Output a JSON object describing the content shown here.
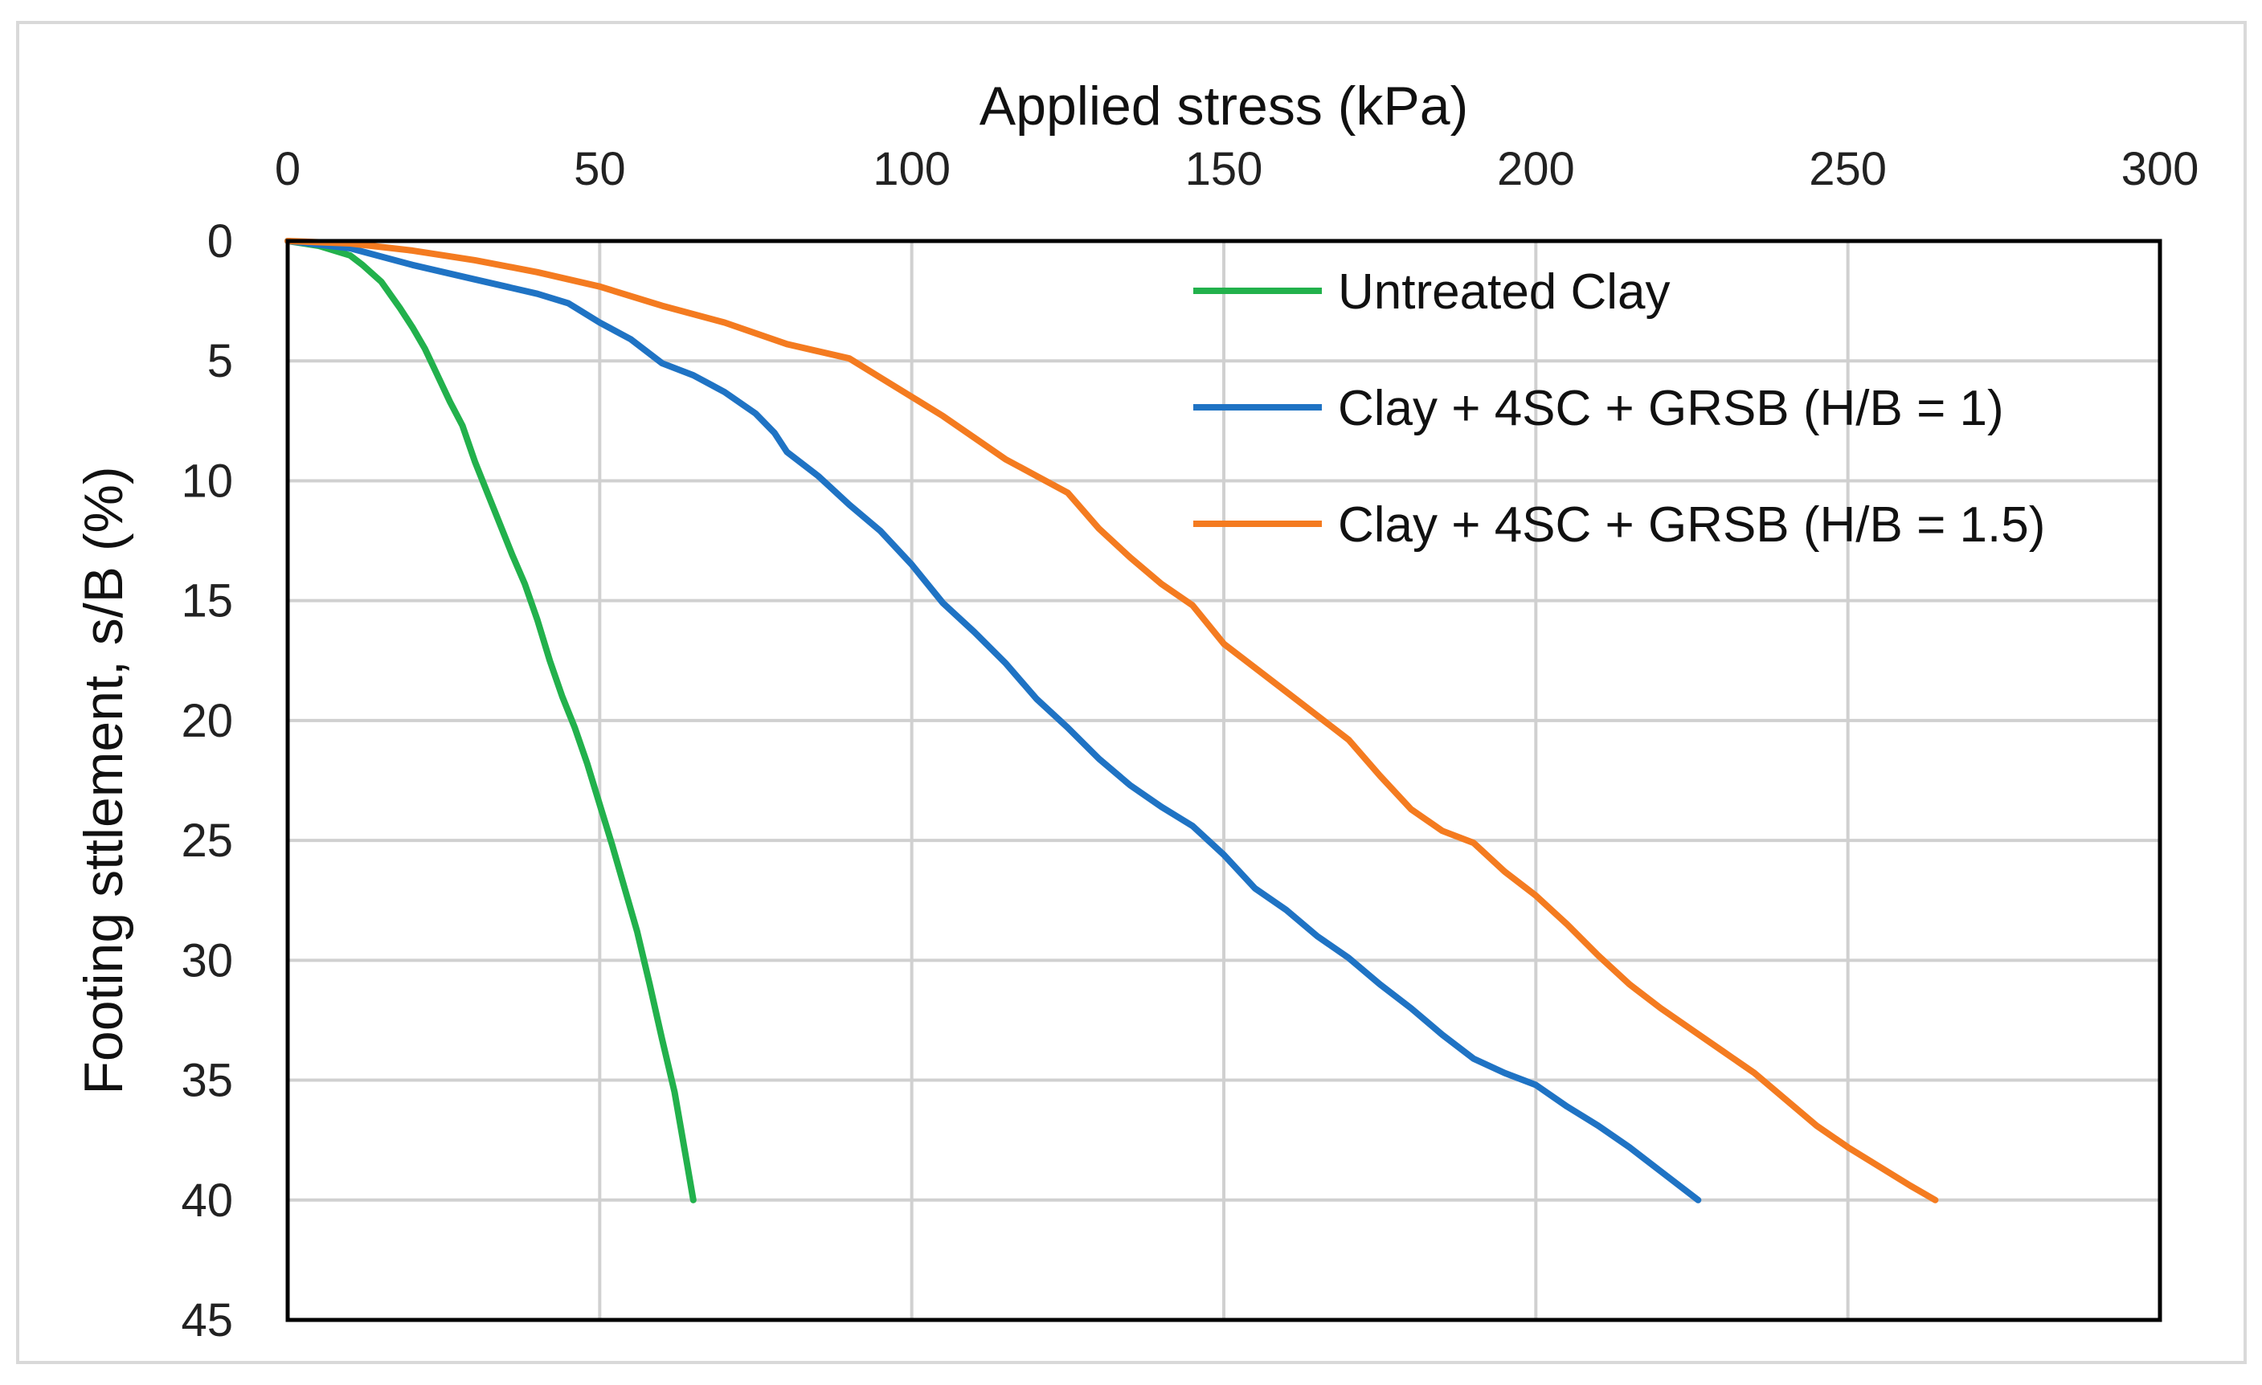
{
  "chart_data": {
    "type": "line",
    "title": "",
    "xlabel": "Applied stress (kPa)",
    "ylabel": "Footing sttlement, s/B (%)",
    "xlim": [
      0,
      300
    ],
    "ylim": [
      0,
      45
    ],
    "x_ticks": [
      "0",
      "50",
      "100",
      "150",
      "200",
      "250",
      "300"
    ],
    "y_ticks": [
      "0",
      "5",
      "10",
      "15",
      "20",
      "25",
      "30",
      "35",
      "40",
      "45"
    ],
    "x_axis_position": "top",
    "y_axis_inverted": true,
    "grid": true,
    "legend_position": "top-right",
    "series": [
      {
        "name": "Untreated Clay",
        "color": "#22b14c",
        "points": [
          [
            0,
            0
          ],
          [
            5,
            0.2
          ],
          [
            10,
            0.6
          ],
          [
            12,
            1.0
          ],
          [
            15,
            1.7
          ],
          [
            18,
            2.8
          ],
          [
            20,
            3.6
          ],
          [
            22,
            4.5
          ],
          [
            24,
            5.6
          ],
          [
            26,
            6.7
          ],
          [
            28,
            7.7
          ],
          [
            30,
            9.2
          ],
          [
            32,
            10.5
          ],
          [
            34,
            11.8
          ],
          [
            36,
            13.1
          ],
          [
            38,
            14.3
          ],
          [
            40,
            15.8
          ],
          [
            42,
            17.5
          ],
          [
            44,
            19.0
          ],
          [
            46,
            20.3
          ],
          [
            48,
            21.8
          ],
          [
            50,
            23.5
          ],
          [
            52,
            25.2
          ],
          [
            54,
            27.0
          ],
          [
            56,
            28.8
          ],
          [
            58,
            31.0
          ],
          [
            60,
            33.3
          ],
          [
            62,
            35.5
          ],
          [
            63,
            37.0
          ],
          [
            64,
            38.5
          ],
          [
            65,
            40.0
          ]
        ]
      },
      {
        "name": "Clay + 4SC + GRSB (H/B = 1)",
        "color": "#1f73c4",
        "points": [
          [
            0,
            0
          ],
          [
            10,
            0.3
          ],
          [
            20,
            1.0
          ],
          [
            30,
            1.6
          ],
          [
            40,
            2.2
          ],
          [
            45,
            2.6
          ],
          [
            50,
            3.4
          ],
          [
            55,
            4.1
          ],
          [
            60,
            5.1
          ],
          [
            65,
            5.6
          ],
          [
            70,
            6.3
          ],
          [
            75,
            7.2
          ],
          [
            78,
            8.0
          ],
          [
            80,
            8.8
          ],
          [
            85,
            9.8
          ],
          [
            90,
            11.0
          ],
          [
            95,
            12.1
          ],
          [
            100,
            13.5
          ],
          [
            105,
            15.1
          ],
          [
            110,
            16.3
          ],
          [
            115,
            17.6
          ],
          [
            120,
            19.1
          ],
          [
            125,
            20.3
          ],
          [
            130,
            21.6
          ],
          [
            135,
            22.7
          ],
          [
            140,
            23.6
          ],
          [
            145,
            24.4
          ],
          [
            150,
            25.6
          ],
          [
            155,
            27.0
          ],
          [
            160,
            27.9
          ],
          [
            165,
            29.0
          ],
          [
            170,
            29.9
          ],
          [
            175,
            31.0
          ],
          [
            180,
            32.0
          ],
          [
            185,
            33.1
          ],
          [
            190,
            34.1
          ],
          [
            195,
            34.7
          ],
          [
            200,
            35.2
          ],
          [
            205,
            36.1
          ],
          [
            210,
            36.9
          ],
          [
            215,
            37.8
          ],
          [
            220,
            38.8
          ],
          [
            226,
            40.0
          ]
        ]
      },
      {
        "name": "Clay + 4SC + GRSB (H/B = 1.5)",
        "color": "#f47b20",
        "points": [
          [
            0,
            0
          ],
          [
            10,
            0.1
          ],
          [
            20,
            0.4
          ],
          [
            30,
            0.8
          ],
          [
            40,
            1.3
          ],
          [
            50,
            1.9
          ],
          [
            60,
            2.7
          ],
          [
            70,
            3.4
          ],
          [
            80,
            4.3
          ],
          [
            90,
            4.9
          ],
          [
            95,
            5.7
          ],
          [
            100,
            6.5
          ],
          [
            105,
            7.3
          ],
          [
            110,
            8.2
          ],
          [
            115,
            9.1
          ],
          [
            120,
            9.8
          ],
          [
            125,
            10.5
          ],
          [
            130,
            12.0
          ],
          [
            135,
            13.2
          ],
          [
            140,
            14.3
          ],
          [
            145,
            15.2
          ],
          [
            150,
            16.8
          ],
          [
            155,
            17.8
          ],
          [
            160,
            18.8
          ],
          [
            165,
            19.8
          ],
          [
            170,
            20.8
          ],
          [
            175,
            22.3
          ],
          [
            180,
            23.7
          ],
          [
            185,
            24.6
          ],
          [
            190,
            25.1
          ],
          [
            195,
            26.3
          ],
          [
            200,
            27.3
          ],
          [
            205,
            28.5
          ],
          [
            210,
            29.8
          ],
          [
            215,
            31.0
          ],
          [
            220,
            32.0
          ],
          [
            225,
            32.9
          ],
          [
            230,
            33.8
          ],
          [
            235,
            34.7
          ],
          [
            240,
            35.8
          ],
          [
            245,
            36.9
          ],
          [
            250,
            37.8
          ],
          [
            255,
            38.6
          ],
          [
            260,
            39.4
          ],
          [
            264,
            40.0
          ]
        ]
      }
    ]
  }
}
